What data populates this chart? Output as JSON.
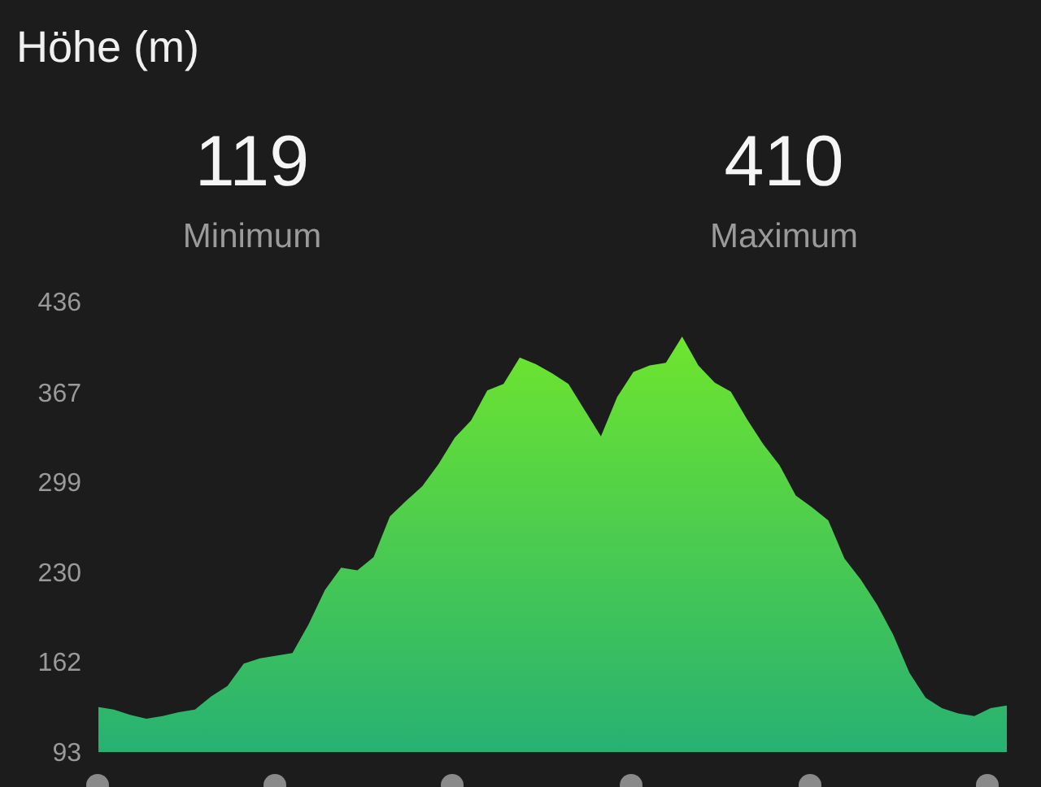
{
  "chart_data": {
    "type": "area",
    "title": "Höhe (m)",
    "annotations": [
      "119",
      "Minimum",
      "410",
      "Maximum"
    ],
    "categories": [
      null,
      null,
      null,
      null,
      null,
      null,
      null,
      null,
      null,
      null,
      null,
      null,
      null,
      null,
      null,
      null,
      null,
      null,
      null,
      null,
      null,
      null,
      null,
      null,
      null,
      null,
      null,
      null,
      null,
      null,
      null,
      null,
      null,
      null,
      null,
      null,
      null,
      null,
      null,
      null,
      null,
      null,
      null,
      null,
      null,
      null,
      null,
      null,
      null,
      null,
      null,
      null,
      null,
      null,
      null,
      null,
      null
    ],
    "series": [
      {
        "color": "#6ee52e",
        "values": [
          128,
          126,
          122,
          119,
          121,
          124,
          126,
          136,
          144,
          161,
          165,
          167,
          169,
          191,
          217,
          234,
          232,
          242,
          273,
          285,
          296,
          313,
          333,
          346,
          369,
          374,
          394,
          389,
          382,
          374,
          354,
          334,
          364,
          383,
          388,
          390,
          410,
          388,
          375,
          368,
          347,
          328,
          312,
          289,
          280,
          270,
          241,
          225,
          206,
          183,
          154,
          135,
          127,
          123,
          121,
          127,
          129
        ]
      }
    ],
    "ylim": [
      93,
      436
    ],
    "yticks": [
      93,
      162,
      230,
      299,
      367,
      436
    ],
    "grid": false
  }
}
